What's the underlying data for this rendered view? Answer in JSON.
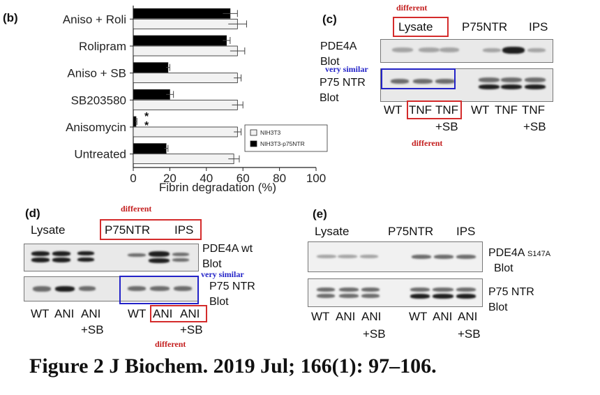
{
  "panel_b": {
    "label": "(b)",
    "legend": {
      "open": "NIH3T3",
      "filled": "NIH3T3-p75NTR"
    }
  },
  "chart_data": {
    "type": "bar",
    "orientation": "horizontal",
    "categories": [
      "Aniso + Roli",
      "Rolipram",
      "Aniso + SB",
      "SB203580",
      "Anisomycin",
      "Untreated"
    ],
    "series": [
      {
        "name": "NIH3T3-p75NTR",
        "values": [
          53,
          51,
          19,
          20,
          1.5,
          18
        ],
        "errors": [
          4,
          2,
          1,
          2,
          0.5,
          1
        ],
        "color": "#000000"
      },
      {
        "name": "NIH3T3",
        "values": [
          57,
          57,
          57,
          57,
          57,
          55
        ],
        "errors": [
          5,
          4,
          2,
          3,
          2,
          3
        ],
        "color": "#f2f2f2"
      }
    ],
    "xlabel": "Fibrin degradation (%)",
    "xlim": [
      0,
      100
    ],
    "xticks": [
      "0",
      "20",
      "40",
      "60",
      "80",
      "100"
    ],
    "annotations": [
      "*",
      "*"
    ],
    "legend_position": "bottom-right"
  },
  "panel_c": {
    "label": "(c)",
    "header_lysate": "Lysate",
    "header_p75": "P75NTR",
    "header_ips": "IPS",
    "row1_label": "PDE4A Blot",
    "row2_label": "P75 NTR Blot",
    "lanes": [
      "WT",
      "TNF",
      "TNF",
      "WT",
      "TNF",
      "TNF"
    ],
    "lane_subs": [
      "",
      "",
      "+SB",
      "",
      "",
      "+SB"
    ],
    "note_top": "different",
    "note_bottom": "different",
    "note_similar": "very similar"
  },
  "panel_d": {
    "label": "(d)",
    "header_lysate": "Lysate",
    "header_p75": "P75NTR",
    "header_ips": "IPS",
    "row1_label": "PDE4A wt Blot",
    "row2_label": "P75 NTR Blot",
    "lanes": [
      "WT",
      "ANI",
      "ANI",
      "WT",
      "ANI",
      "ANI"
    ],
    "lane_subs": [
      "",
      "",
      "+SB",
      "",
      "",
      "+SB"
    ],
    "note_top": "different",
    "note_bottom": "different",
    "note_similar": "very similar"
  },
  "panel_e": {
    "label": "(e)",
    "header_lysate": "Lysate",
    "header_p75": "P75NTR",
    "header_ips": "IPS",
    "row1_label": "PDE4A",
    "row1_sub": "S147A",
    "row1_label2": "Blot",
    "row2_label": "P75 NTR Blot",
    "lanes": [
      "WT",
      "ANI",
      "ANI",
      "WT",
      "ANI",
      "ANI"
    ],
    "lane_subs": [
      "",
      "",
      "+SB",
      "",
      "",
      "+SB"
    ]
  },
  "caption": "Figure 2 J Biochem. 2019 Jul; 166(1): 97–106."
}
